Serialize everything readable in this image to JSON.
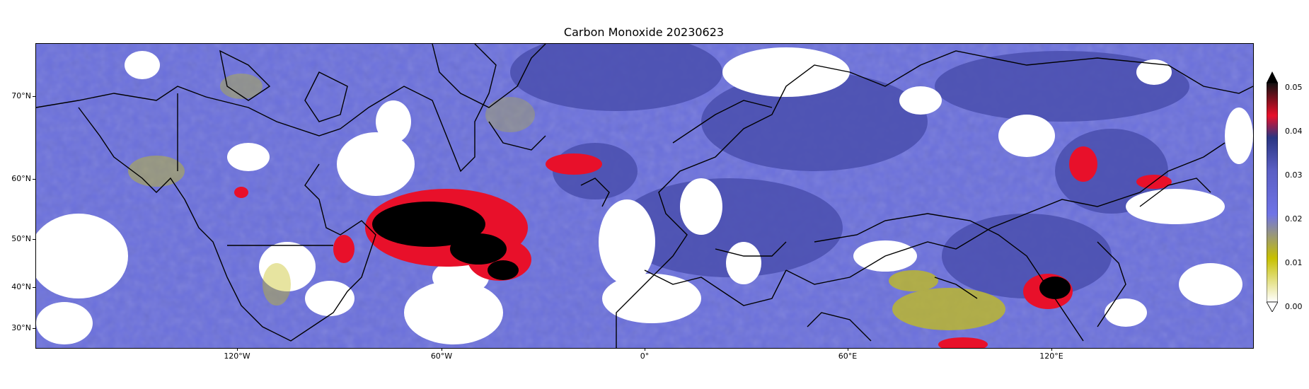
{
  "title": "Carbon Monoxide 20230623",
  "lat_labels": [
    "70°N",
    "60°N",
    "50°N",
    "40°N",
    "30°N"
  ],
  "lon_labels": [
    "120°W",
    "60°W",
    "0°",
    "60°E",
    "120°E"
  ],
  "colorbar": {
    "ticks": [
      "0.00",
      "0.01",
      "0.02",
      "0.03",
      "0.04",
      "0.05"
    ],
    "colors": [
      "#ffffff",
      "#c7c000",
      "#6f73e6",
      "#3b3f9e",
      "#1f2b7a",
      "#e8102a",
      "#000000"
    ]
  },
  "colors": {
    "background_co": "#6a6ed8",
    "no_data": "#ffffff",
    "high_co": "#e8102a",
    "extreme_co": "#000000",
    "low_co": "#c4bf1a",
    "coastline": "#000000"
  }
}
